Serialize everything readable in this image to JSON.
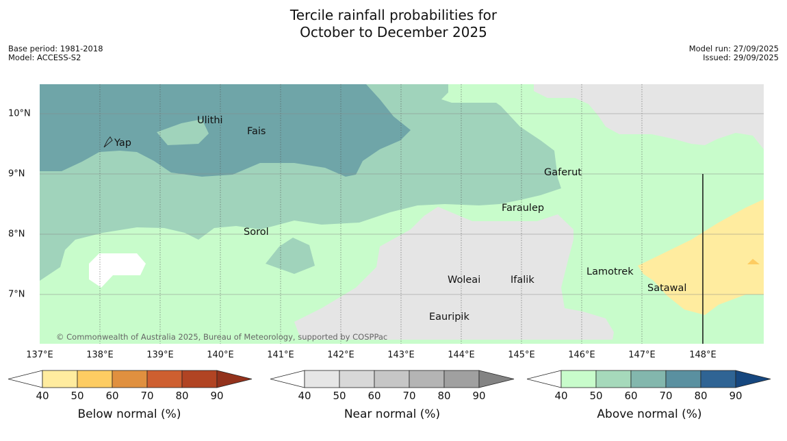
{
  "title": {
    "line1": "Tercile rainfall probabilities for",
    "line2": "October to December 2025"
  },
  "meta_left": {
    "base_period": "Base period: 1981-2018",
    "model": "Model: ACCESS-S2"
  },
  "meta_right": {
    "model_run": "Model run: 27/09/2025",
    "issued": "Issued: 29/09/2025"
  },
  "map": {
    "copyright": "© Commonwealth of Australia 2025, Bureau of Meteorology, supported by COSPPac",
    "lon_labels": [
      "137°E",
      "138°E",
      "139°E",
      "140°E",
      "141°E",
      "142°E",
      "143°E",
      "144°E",
      "145°E",
      "146°E",
      "147°E",
      "148°E"
    ],
    "lat_labels": [
      "10°N",
      "9°N",
      "8°N",
      "7°N"
    ],
    "places": [
      {
        "name": "Yap"
      },
      {
        "name": "Ulithi"
      },
      {
        "name": "Fais"
      },
      {
        "name": "Gaferut"
      },
      {
        "name": "Faraulep"
      },
      {
        "name": "Sorol"
      },
      {
        "name": "Woleai"
      },
      {
        "name": "Ifalik"
      },
      {
        "name": "Lamotrek"
      },
      {
        "name": "Satawal"
      },
      {
        "name": "Eauripik"
      }
    ],
    "colors": {
      "ocean_default": "#c8fccb",
      "above_50": "#a0d3bb",
      "above_60": "#6fa5a8",
      "near_normal_40": "#e5e5e5",
      "below_normal_40": "#ffec9f",
      "below_normal_50": "#fdcc62"
    }
  },
  "colorbars": [
    {
      "title": "Below normal (%)",
      "ticks": [
        "40",
        "50",
        "60",
        "70",
        "80",
        "90"
      ],
      "low_color": "#ffffff",
      "colors": [
        "#ffec9f",
        "#fdcc62",
        "#e0903f",
        "#ce5f30",
        "#b14423"
      ],
      "high_color": "#93321c"
    },
    {
      "title": "Near normal (%)",
      "ticks": [
        "40",
        "50",
        "60",
        "70",
        "80",
        "90"
      ],
      "low_color": "#ffffff",
      "colors": [
        "#e6e6e6",
        "#d8d8d8",
        "#c6c6c6",
        "#b4b4b4",
        "#a0a0a0"
      ],
      "high_color": "#838383"
    },
    {
      "title": "Above normal (%)",
      "ticks": [
        "40",
        "50",
        "60",
        "70",
        "80",
        "90"
      ],
      "low_color": "#ffffff",
      "colors": [
        "#c8fccb",
        "#a6d9bb",
        "#83b7ad",
        "#5a90a0",
        "#2f6494"
      ],
      "high_color": "#16477f"
    }
  ]
}
